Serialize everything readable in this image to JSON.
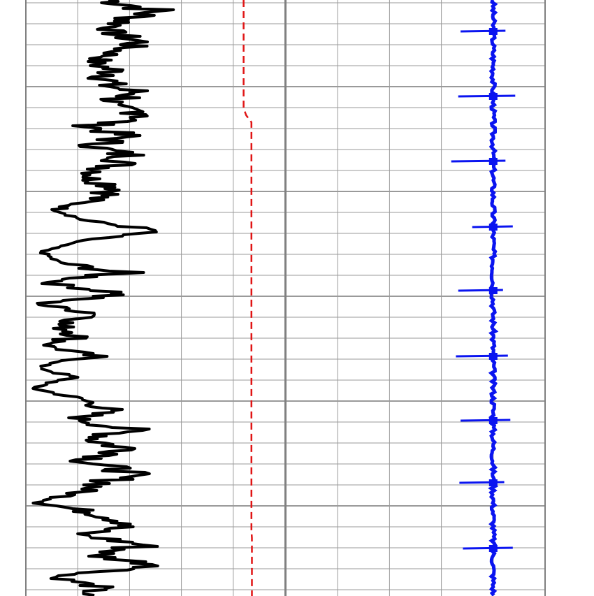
{
  "chart_data": {
    "type": "line",
    "title": "",
    "orientation": "vertical-depth",
    "grid": true,
    "colors": {
      "grid": "#9a9a9a",
      "track_border": "#808080",
      "gamma_curve": "#000000",
      "dashed_curve": "#e01414",
      "spike_curve": "#0a14f0"
    },
    "tracks": [
      {
        "name": "",
        "major_divisions": 5
      },
      {
        "name": "",
        "major_divisions": 5
      }
    ],
    "series": [
      {
        "track": 0,
        "style": "solid",
        "depth": [
          0,
          15,
          30,
          45,
          60,
          75,
          90,
          105,
          120,
          135,
          150,
          165,
          180,
          195,
          210,
          225,
          240,
          255,
          270,
          285,
          300,
          315,
          330,
          345,
          360,
          375,
          390,
          405,
          420,
          435,
          450,
          465,
          480,
          495,
          510,
          525,
          540,
          555,
          570,
          585,
          600,
          615,
          630,
          645,
          660,
          675,
          690,
          705,
          720,
          735,
          750,
          765,
          780,
          795,
          810,
          825,
          840,
          853
        ],
        "values": [
          1.6,
          2.5,
          1.9,
          1.6,
          2.2,
          1.7,
          1.3,
          1.8,
          1.5,
          2.2,
          1.4,
          2.6,
          1.2,
          1.9,
          1.3,
          2.1,
          1.6,
          1.2,
          1.9,
          1.3,
          0.6,
          1.1,
          2.5,
          1.0,
          0.3,
          0.6,
          1.8,
          0.4,
          1.9,
          0.2,
          1.5,
          0.6,
          1.1,
          0.4,
          1.3,
          0.2,
          0.9,
          0.1,
          1.0,
          1.6,
          1.0,
          2.0,
          1.3,
          2.1,
          1.1,
          2.0,
          1.6,
          1.0,
          0.3,
          1.4,
          2.1,
          1.0,
          2.3,
          1.3,
          2.7,
          0.5,
          1.4,
          1.1
        ],
        "jitter": [
          0.8,
          0.9,
          0.6,
          0.5,
          0.7,
          0.4,
          0.5,
          0.9,
          0.8,
          1.0,
          0.7,
          1.0,
          0.5,
          0.8,
          0.6,
          0.9,
          0.7,
          0.5,
          0.8,
          0.5,
          0.2,
          0.2,
          0.5,
          0.1,
          0.1,
          0.2,
          0.8,
          0.3,
          0.8,
          0.2,
          0.6,
          0.4,
          0.7,
          0.3,
          0.5,
          0.1,
          0.3,
          0.1,
          0.3,
          0.6,
          0.5,
          0.8,
          0.6,
          0.9,
          0.5,
          0.8,
          0.7,
          0.4,
          0.3,
          0.6,
          0.8,
          0.4,
          0.9,
          0.5,
          0.6,
          0.3,
          0.5,
          0.4
        ]
      },
      {
        "track": 0,
        "style": "dashed",
        "depth": [
          0,
          40,
          100,
          155,
          165,
          175,
          185,
          200,
          260,
          400,
          600,
          750,
          760,
          770,
          853
        ],
        "values": [
          4.2,
          4.2,
          4.2,
          4.2,
          4.25,
          4.35,
          4.35,
          4.35,
          4.35,
          4.35,
          4.35,
          4.35,
          4.35,
          4.36,
          4.36
        ]
      },
      {
        "track": 1,
        "style": "spiky",
        "baseline": 4.0,
        "spikes": [
          {
            "depth": 45,
            "low": 0.1,
            "high": 1.4
          },
          {
            "depth": 138,
            "low": 0.5,
            "high": 1.5
          },
          {
            "depth": 231,
            "low": 0.1,
            "high": 1.8
          },
          {
            "depth": 325,
            "low": 0.4,
            "high": 0.9
          },
          {
            "depth": 416,
            "low": 0.0,
            "high": 1.5
          },
          {
            "depth": 510,
            "low": 0.2,
            "high": 1.6
          },
          {
            "depth": 602,
            "low": 0.3,
            "high": 1.4
          },
          {
            "depth": 691,
            "low": 0.05,
            "high": 1.45
          },
          {
            "depth": 785,
            "low": 0.4,
            "high": 1.3
          }
        ]
      }
    ]
  }
}
